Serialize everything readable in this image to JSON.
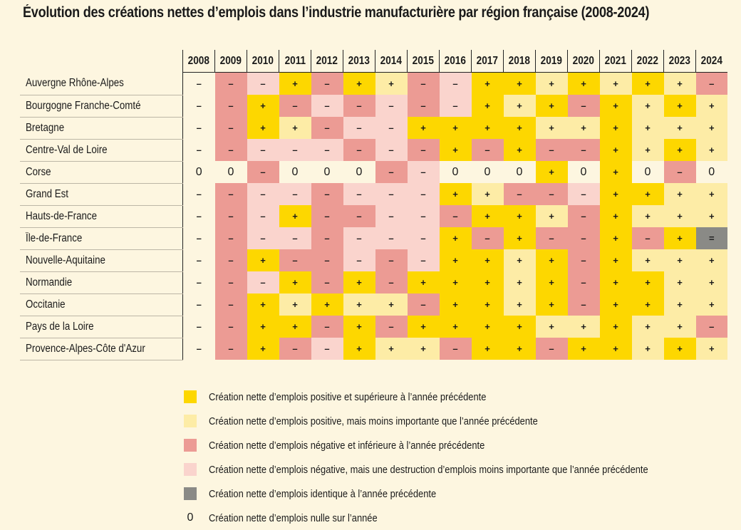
{
  "chart_data": {
    "type": "heatmap",
    "title": "Évolution des créations nettes d’emplois dans l’industrie manufacturière par région française (2008-2024)",
    "years": [
      "2008",
      "2009",
      "2010",
      "2011",
      "2012",
      "2013",
      "2014",
      "2015",
      "2016",
      "2017",
      "2018",
      "2019",
      "2020",
      "2021",
      "2022",
      "2023",
      "2024"
    ],
    "colors": {
      "Y": "#fdd700",
      "y": "#fdeca6",
      "R": "#ec9b94",
      "r": "#fad4cd",
      "G": "#8a8a86",
      "N": "transparent"
    },
    "legend": [
      {
        "code": "Y",
        "label": "Création nette d’emplois positive et supérieure à l’année précédente"
      },
      {
        "code": "y",
        "label": "Création nette d’emplois positive, mais moins importante que l’année précédente"
      },
      {
        "code": "R",
        "label": "Création nette d’emplois négative et inférieure à l’année précédente"
      },
      {
        "code": "r",
        "label": "Création nette d’emplois négative, mais une destruction d’emplois moins importante que l’année précédente"
      },
      {
        "code": "G",
        "label": "Création nette d’emplois identique à l’année précédente"
      },
      {
        "code": "0",
        "label": "Création nette d’emplois nulle sur l’année"
      }
    ],
    "regions": [
      {
        "name": "Auvergne Rhône-Alpes",
        "signs": [
          "–",
          "–",
          "–",
          "+",
          "–",
          "+",
          "+",
          "–",
          "–",
          "+",
          "+",
          "+",
          "+",
          "+",
          "+",
          "+",
          "–"
        ],
        "colors": [
          "N",
          "R",
          "r",
          "Y",
          "R",
          "Y",
          "y",
          "R",
          "r",
          "Y",
          "Y",
          "y",
          "Y",
          "y",
          "Y",
          "y",
          "R"
        ]
      },
      {
        "name": "Bourgogne Franche-Comté",
        "signs": [
          "–",
          "–",
          "+",
          "–",
          "–",
          "–",
          "–",
          "–",
          "–",
          "+",
          "+",
          "+",
          "–",
          "+",
          "+",
          "+",
          "+"
        ],
        "colors": [
          "N",
          "R",
          "Y",
          "R",
          "r",
          "R",
          "r",
          "R",
          "r",
          "Y",
          "y",
          "Y",
          "R",
          "Y",
          "y",
          "Y",
          "y"
        ]
      },
      {
        "name": "Bretagne",
        "signs": [
          "–",
          "–",
          "+",
          "+",
          "–",
          "–",
          "–",
          "+",
          "+",
          "+",
          "+",
          "+",
          "+",
          "+",
          "+",
          "+",
          "+"
        ],
        "colors": [
          "N",
          "R",
          "Y",
          "y",
          "R",
          "r",
          "r",
          "Y",
          "Y",
          "Y",
          "Y",
          "y",
          "y",
          "Y",
          "y",
          "y",
          "y"
        ]
      },
      {
        "name": "Centre-Val de Loire",
        "signs": [
          "–",
          "–",
          "–",
          "–",
          "–",
          "–",
          "–",
          "–",
          "+",
          "–",
          "+",
          "–",
          "–",
          "+",
          "+",
          "+",
          "+"
        ],
        "colors": [
          "N",
          "R",
          "r",
          "r",
          "r",
          "R",
          "r",
          "R",
          "Y",
          "R",
          "Y",
          "R",
          "R",
          "Y",
          "y",
          "Y",
          "y"
        ]
      },
      {
        "name": "Corse",
        "signs": [
          "0",
          "0",
          "–",
          "0",
          "0",
          "0",
          "–",
          "–",
          "0",
          "0",
          "0",
          "+",
          "0",
          "+",
          "0",
          "–",
          "0"
        ],
        "colors": [
          "N",
          "N",
          "R",
          "N",
          "N",
          "N",
          "R",
          "r",
          "N",
          "N",
          "N",
          "Y",
          "N",
          "Y",
          "N",
          "R",
          "N"
        ]
      },
      {
        "name": "Grand Est",
        "signs": [
          "–",
          "–",
          "–",
          "–",
          "–",
          "–",
          "–",
          "–",
          "+",
          "+",
          "–",
          "–",
          "–",
          "+",
          "+",
          "+",
          "+"
        ],
        "colors": [
          "N",
          "R",
          "r",
          "r",
          "R",
          "r",
          "r",
          "r",
          "Y",
          "y",
          "R",
          "R",
          "r",
          "Y",
          "Y",
          "y",
          "y"
        ]
      },
      {
        "name": "Hauts-de-France",
        "signs": [
          "–",
          "–",
          "–",
          "+",
          "–",
          "–",
          "–",
          "–",
          "–",
          "+",
          "+",
          "+",
          "–",
          "+",
          "+",
          "+",
          "+"
        ],
        "colors": [
          "N",
          "R",
          "r",
          "Y",
          "R",
          "R",
          "r",
          "r",
          "R",
          "Y",
          "Y",
          "y",
          "R",
          "Y",
          "y",
          "y",
          "y"
        ]
      },
      {
        "name": "Île-de-France",
        "signs": [
          "–",
          "–",
          "–",
          "–",
          "–",
          "–",
          "–",
          "–",
          "+",
          "–",
          "+",
          "–",
          "–",
          "+",
          "–",
          "+",
          "="
        ],
        "colors": [
          "N",
          "R",
          "r",
          "r",
          "R",
          "r",
          "r",
          "r",
          "Y",
          "R",
          "Y",
          "R",
          "R",
          "Y",
          "R",
          "Y",
          "G"
        ]
      },
      {
        "name": "Nouvelle-Aquitaine",
        "signs": [
          "–",
          "–",
          "+",
          "–",
          "–",
          "–",
          "–",
          "–",
          "+",
          "+",
          "+",
          "+",
          "–",
          "+",
          "+",
          "+",
          "+"
        ],
        "colors": [
          "N",
          "R",
          "Y",
          "R",
          "R",
          "r",
          "R",
          "r",
          "Y",
          "Y",
          "y",
          "Y",
          "R",
          "Y",
          "y",
          "y",
          "y"
        ]
      },
      {
        "name": "Normandie",
        "signs": [
          "–",
          "–",
          "–",
          "+",
          "–",
          "+",
          "–",
          "+",
          "+",
          "+",
          "+",
          "+",
          "–",
          "+",
          "+",
          "+",
          "+"
        ],
        "colors": [
          "N",
          "R",
          "r",
          "Y",
          "R",
          "Y",
          "R",
          "Y",
          "Y",
          "Y",
          "y",
          "Y",
          "R",
          "Y",
          "Y",
          "y",
          "y"
        ]
      },
      {
        "name": "Occitanie",
        "signs": [
          "–",
          "–",
          "+",
          "+",
          "+",
          "+",
          "+",
          "–",
          "+",
          "+",
          "+",
          "+",
          "–",
          "+",
          "+",
          "+",
          "+"
        ],
        "colors": [
          "N",
          "R",
          "Y",
          "y",
          "Y",
          "y",
          "y",
          "R",
          "Y",
          "Y",
          "y",
          "Y",
          "R",
          "Y",
          "Y",
          "y",
          "y"
        ]
      },
      {
        "name": "Pays de la Loire",
        "signs": [
          "–",
          "–",
          "+",
          "+",
          "–",
          "+",
          "–",
          "+",
          "+",
          "+",
          "+",
          "+",
          "+",
          "+",
          "+",
          "+",
          "–"
        ],
        "colors": [
          "N",
          "R",
          "Y",
          "Y",
          "R",
          "Y",
          "R",
          "Y",
          "Y",
          "Y",
          "Y",
          "y",
          "y",
          "Y",
          "y",
          "y",
          "R"
        ]
      },
      {
        "name": "Provence-Alpes-Côte d'Azur",
        "signs": [
          "–",
          "–",
          "+",
          "–",
          "–",
          "+",
          "+",
          "+",
          "–",
          "+",
          "+",
          "–",
          "+",
          "+",
          "+",
          "+",
          "+"
        ],
        "colors": [
          "N",
          "R",
          "Y",
          "R",
          "r",
          "Y",
          "y",
          "y",
          "R",
          "Y",
          "Y",
          "R",
          "Y",
          "Y",
          "y",
          "Y",
          "y"
        ]
      }
    ]
  }
}
